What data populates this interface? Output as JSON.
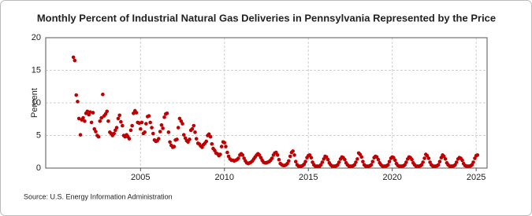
{
  "chart_data": {
    "type": "scatter",
    "title": "Monthly Percent of Industrial Natural Gas Deliveries in Pennsylvania Represented by the Price",
    "ylabel": "Percent",
    "source": "Source: U.S. Energy Information Administration",
    "xlim": [
      1999.35,
      2025.65
    ],
    "xticks": [
      2005,
      2010,
      2015,
      2020,
      2025
    ],
    "ylim": [
      0,
      20
    ],
    "yticks": [
      0,
      5,
      10,
      15,
      20
    ],
    "grid": true,
    "series": [
      {
        "color": "#c00000",
        "x": [
          2001,
          2001.08,
          2001.17,
          2001.25,
          2001.33,
          2001.42,
          2001.5,
          2001.58,
          2001.67,
          2001.75,
          2001.83,
          2001.92,
          2002,
          2002.08,
          2002.17,
          2002.25,
          2002.33,
          2002.42,
          2002.5,
          2002.58,
          2002.67,
          2002.75,
          2002.83,
          2002.92,
          2003,
          2003.08,
          2003.17,
          2003.25,
          2003.33,
          2003.42,
          2003.5,
          2003.58,
          2003.67,
          2003.75,
          2003.83,
          2003.92,
          2004,
          2004.08,
          2004.17,
          2004.25,
          2004.33,
          2004.42,
          2004.5,
          2004.58,
          2004.67,
          2004.75,
          2004.83,
          2004.92,
          2005,
          2005.08,
          2005.17,
          2005.25,
          2005.33,
          2005.42,
          2005.5,
          2005.58,
          2005.67,
          2005.75,
          2005.83,
          2005.92,
          2006,
          2006.08,
          2006.17,
          2006.25,
          2006.33,
          2006.42,
          2006.5,
          2006.58,
          2006.67,
          2006.75,
          2006.83,
          2006.92,
          2007,
          2007.08,
          2007.17,
          2007.25,
          2007.33,
          2007.42,
          2007.5,
          2007.58,
          2007.67,
          2007.75,
          2007.83,
          2007.92,
          2008,
          2008.08,
          2008.17,
          2008.25,
          2008.33,
          2008.42,
          2008.5,
          2008.58,
          2008.67,
          2008.75,
          2008.83,
          2008.92,
          2009,
          2009.08,
          2009.17,
          2009.25,
          2009.33,
          2009.42,
          2009.5,
          2009.58,
          2009.67,
          2009.75,
          2009.83,
          2009.92,
          2010,
          2010.08,
          2010.17,
          2010.25,
          2010.33,
          2010.42,
          2010.5,
          2010.58,
          2010.67,
          2010.75,
          2010.83,
          2010.92,
          2011,
          2011.08,
          2011.17,
          2011.25,
          2011.33,
          2011.42,
          2011.5,
          2011.58,
          2011.67,
          2011.75,
          2011.83,
          2011.92,
          2012,
          2012.08,
          2012.17,
          2012.25,
          2012.33,
          2012.42,
          2012.5,
          2012.58,
          2012.67,
          2012.75,
          2012.83,
          2012.92,
          2013,
          2013.08,
          2013.17,
          2013.25,
          2013.33,
          2013.42,
          2013.5,
          2013.58,
          2013.67,
          2013.75,
          2013.83,
          2013.92,
          2014,
          2014.08,
          2014.17,
          2014.25,
          2014.33,
          2014.42,
          2014.5,
          2014.58,
          2014.67,
          2014.75,
          2014.83,
          2014.92,
          2015,
          2015.08,
          2015.17,
          2015.25,
          2015.33,
          2015.42,
          2015.5,
          2015.58,
          2015.67,
          2015.75,
          2015.83,
          2015.92,
          2016,
          2016.08,
          2016.17,
          2016.25,
          2016.33,
          2016.42,
          2016.5,
          2016.58,
          2016.67,
          2016.75,
          2016.83,
          2016.92,
          2017,
          2017.08,
          2017.17,
          2017.25,
          2017.33,
          2017.42,
          2017.5,
          2017.58,
          2017.67,
          2017.75,
          2017.83,
          2017.92,
          2018,
          2018.08,
          2018.17,
          2018.25,
          2018.33,
          2018.42,
          2018.5,
          2018.58,
          2018.67,
          2018.75,
          2018.83,
          2018.92,
          2019,
          2019.08,
          2019.17,
          2019.25,
          2019.33,
          2019.42,
          2019.5,
          2019.58,
          2019.67,
          2019.75,
          2019.83,
          2019.92,
          2020,
          2020.08,
          2020.17,
          2020.25,
          2020.33,
          2020.42,
          2020.5,
          2020.58,
          2020.67,
          2020.75,
          2020.83,
          2020.92,
          2021,
          2021.08,
          2021.17,
          2021.25,
          2021.33,
          2021.42,
          2021.5,
          2021.58,
          2021.67,
          2021.75,
          2021.83,
          2021.92,
          2022,
          2022.08,
          2022.17,
          2022.25,
          2022.33,
          2022.42,
          2022.5,
          2022.58,
          2022.67,
          2022.75,
          2022.83,
          2022.92,
          2023,
          2023.08,
          2023.17,
          2023.25,
          2023.33,
          2023.42,
          2023.5,
          2023.58,
          2023.67,
          2023.75,
          2023.83,
          2023.92,
          2024,
          2024.08,
          2024.17,
          2024.25,
          2024.33,
          2024.42,
          2024.5,
          2024.58,
          2024.67,
          2024.75,
          2024.83,
          2024.92,
          2025,
          2025.08
        ],
        "values": [
          17,
          16.5,
          11.2,
          10.2,
          7.6,
          5.1,
          7.4,
          7.7,
          7.2,
          8.4,
          8.7,
          8.2,
          8.6,
          7,
          8.5,
          6,
          5.6,
          5,
          4.8,
          7.2,
          7.7,
          11.3,
          8,
          8.3,
          8.7,
          7.2,
          5.5,
          5.3,
          5,
          5.3,
          5.8,
          6.2,
          7.6,
          8.1,
          7.1,
          6.5,
          5,
          4.8,
          5.1,
          4.8,
          4.5,
          5.8,
          6.5,
          8.4,
          8.8,
          8.5,
          7,
          6.9,
          6,
          7,
          5.3,
          5.5,
          6.8,
          7.9,
          8,
          7,
          6.2,
          5.3,
          4.3,
          4.1,
          4.2,
          4.5,
          5.6,
          6.6,
          6.1,
          7.8,
          8.3,
          8.4,
          5.5,
          4,
          3.5,
          3.2,
          3.3,
          4.3,
          4.4,
          6.2,
          7.6,
          7.2,
          6.8,
          5.1,
          4.6,
          4.2,
          4,
          4.4,
          5.8,
          6,
          6.5,
          5.5,
          4.5,
          3.8,
          3.7,
          3.4,
          3.2,
          3.6,
          3.8,
          4.1,
          5,
          5.2,
          4.8,
          3.7,
          3,
          2.7,
          2.3,
          2.2,
          1.9,
          2.1,
          3.3,
          4,
          3.9,
          3.3,
          2.4,
          1.8,
          1.4,
          1.2,
          1.2,
          1.1,
          1.2,
          1.3,
          1.5,
          2,
          2.2,
          2,
          1.5,
          1.1,
          0.8,
          0.7,
          0.8,
          0.9,
          1.1,
          1.4,
          1.7,
          2,
          2.2,
          2,
          1.6,
          1.2,
          0.9,
          0.8,
          0.8,
          0.9,
          1,
          1.2,
          1.5,
          2,
          2.3,
          2.4,
          2,
          1.3,
          0.7,
          0.5,
          0.4,
          0.4,
          0.5,
          0.7,
          1.1,
          1.8,
          2.4,
          2.6,
          2,
          1,
          0.5,
          0.3,
          0.3,
          0.3,
          0.4,
          0.6,
          1,
          1.6,
          1.9,
          2,
          1.6,
          0.9,
          0.5,
          0.3,
          0.3,
          0.3,
          0.3,
          0.5,
          0.9,
          1.4,
          1.8,
          1.7,
          1.3,
          0.8,
          0.5,
          0.3,
          0.3,
          0.3,
          0.35,
          0.5,
          0.9,
          1.4,
          1.7,
          1.6,
          1.3,
          0.8,
          0.5,
          0.3,
          0.3,
          0.3,
          0.35,
          0.5,
          0.9,
          1.4,
          2.3,
          2.1,
          1.7,
          1,
          0.5,
          0.3,
          0.3,
          0.3,
          0.35,
          0.5,
          1,
          1.6,
          1.8,
          1.7,
          1.3,
          0.8,
          0.5,
          0.3,
          0.3,
          0.3,
          0.35,
          0.5,
          1,
          1.5,
          1.7,
          1.6,
          1.2,
          0.7,
          0.4,
          0.3,
          0.3,
          0.3,
          0.35,
          0.5,
          0.9,
          1.4,
          1.7,
          1.6,
          1.3,
          0.8,
          0.5,
          0.3,
          0.3,
          0.3,
          0.35,
          0.5,
          0.9,
          1.5,
          2.1,
          1.9,
          1.5,
          0.9,
          0.5,
          0.3,
          0.3,
          0.3,
          0.35,
          0.5,
          1,
          1.6,
          2,
          1.8,
          1.4,
          0.8,
          0.5,
          0.3,
          0.3,
          0.3,
          0.35,
          0.5,
          0.9,
          1.4,
          1.6,
          1.5,
          1.2,
          0.7,
          0.4,
          0.3,
          0.3,
          0.3,
          0.35,
          0.5,
          0.9,
          1.5,
          1.9,
          2
        ]
      }
    ]
  }
}
